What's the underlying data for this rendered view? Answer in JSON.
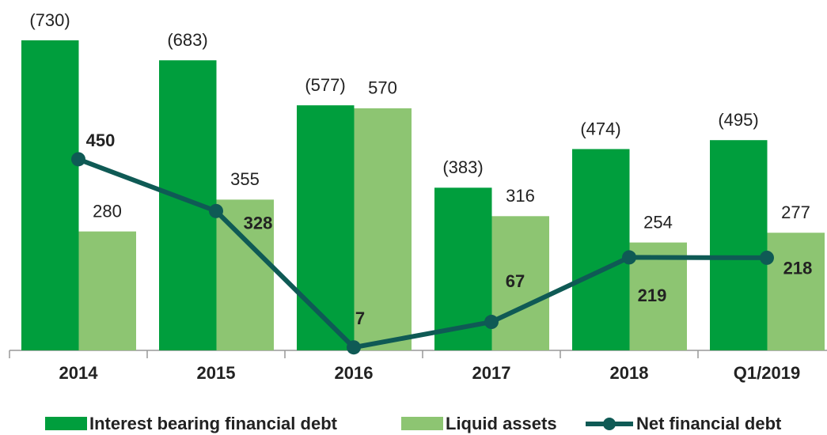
{
  "chart_data": {
    "type": "bar-line",
    "categories": [
      "2014",
      "2015",
      "2016",
      "2017",
      "2018",
      "Q1/2019"
    ],
    "series": [
      {
        "name": "Interest bearing financial debt",
        "type": "bar",
        "color": "#009e3d",
        "values": [
          730,
          683,
          577,
          383,
          474,
          495
        ],
        "value_labels": [
          "(730)",
          "(683)",
          "(577)",
          "(383)",
          "(474)",
          "(495)"
        ]
      },
      {
        "name": "Liquid assets",
        "type": "bar",
        "color": "#8dc572",
        "values": [
          280,
          355,
          570,
          316,
          254,
          277
        ]
      },
      {
        "name": "Net financial debt",
        "type": "line",
        "color": "#0f5a55",
        "values": [
          450,
          328,
          7,
          67,
          219,
          218
        ]
      }
    ]
  }
}
